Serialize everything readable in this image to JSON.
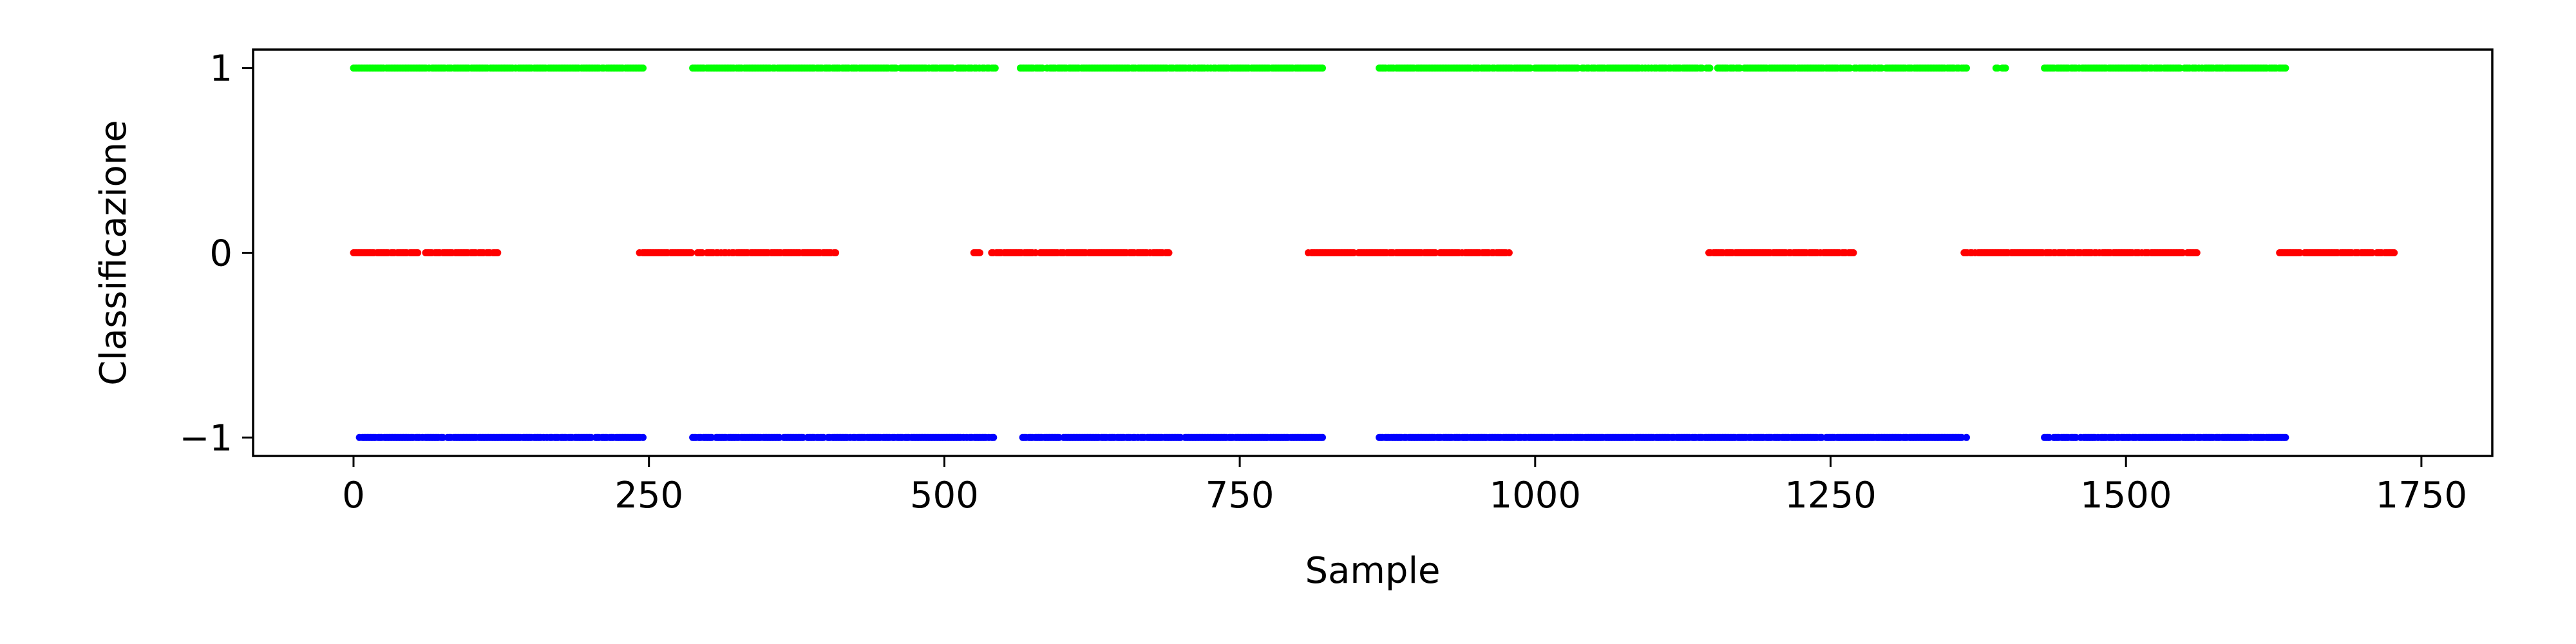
{
  "colors": {
    "class_pos1": "#00ff00",
    "class_0": "#ff0000",
    "class_neg1": "#0000ff",
    "axes": "#000000",
    "background": "#ffffff"
  },
  "chart_data": {
    "type": "scatter",
    "title": "",
    "xlabel": "Sample",
    "ylabel": "Classificazione",
    "xlim": [
      -85,
      1810
    ],
    "ylim": [
      -1.1,
      1.1
    ],
    "grid": false,
    "legend": "none",
    "x_ticks": [
      0,
      250,
      500,
      750,
      1000,
      1250,
      1500,
      1750
    ],
    "x_tick_labels": [
      "0",
      "250",
      "500",
      "750",
      "1000",
      "1250",
      "1500",
      "1750"
    ],
    "y_ticks": [
      1,
      0,
      -1
    ],
    "y_tick_labels": [
      "1",
      "0",
      "−1"
    ],
    "point_density_per_sample": 0.75,
    "series": [
      {
        "y": 1,
        "color": "#00ff00",
        "x_ranges": [
          [
            0,
            245
          ],
          [
            287,
            543
          ],
          [
            563,
            820
          ],
          [
            868,
            1365
          ],
          [
            1390,
            1398
          ],
          [
            1431,
            1635
          ]
        ]
      },
      {
        "y": 0,
        "color": "#ff0000",
        "x_ranges": [
          [
            0,
            122
          ],
          [
            242,
            408
          ],
          [
            525,
            530
          ],
          [
            540,
            690
          ],
          [
            808,
            978
          ],
          [
            1147,
            1272
          ],
          [
            1363,
            1560
          ],
          [
            1630,
            1727
          ]
        ]
      },
      {
        "y": -1,
        "color": "#0000ff",
        "x_ranges": [
          [
            5,
            245
          ],
          [
            287,
            543
          ],
          [
            565,
            820
          ],
          [
            868,
            1365
          ],
          [
            1431,
            1635
          ]
        ]
      }
    ]
  }
}
